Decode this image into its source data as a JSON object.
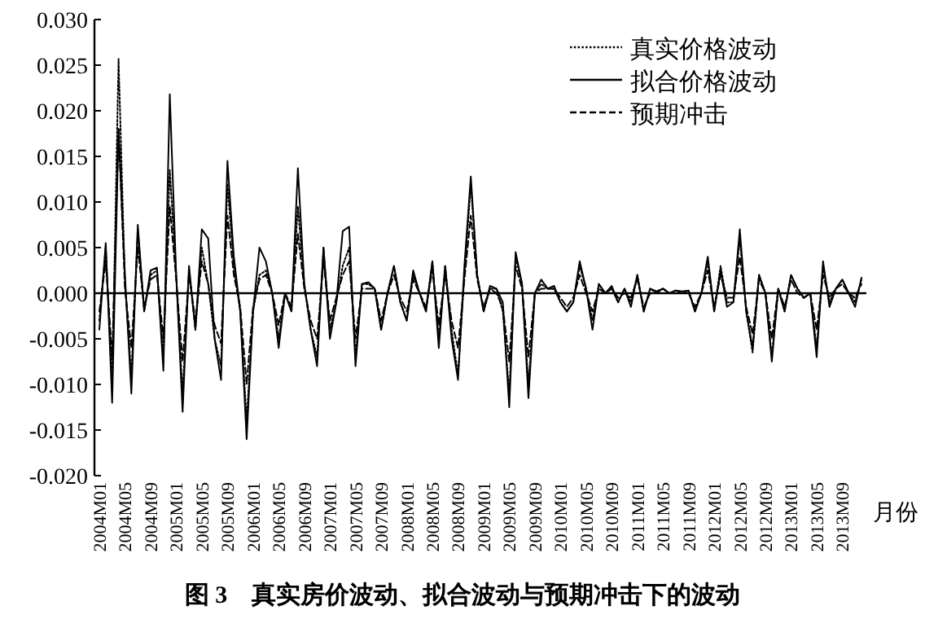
{
  "chart_data": {
    "type": "line",
    "title": "图 3　真实房价波动、拟合波动与预期冲击下的波动",
    "xlabel": "月份",
    "legend": "top right",
    "categories": [
      "2004M01",
      null,
      null,
      null,
      "2004M05",
      null,
      null,
      null,
      "2004M09",
      null,
      null,
      null,
      "2005M01",
      null,
      null,
      null,
      "2005M05",
      null,
      null,
      null,
      "2005M09",
      null,
      null,
      null,
      "2006M01",
      null,
      null,
      null,
      "2006M05",
      null,
      null,
      null,
      "2006M09",
      null,
      null,
      null,
      "2007M01",
      null,
      null,
      null,
      "2007M05",
      null,
      null,
      null,
      "2007M09",
      null,
      null,
      null,
      "2008M01",
      null,
      null,
      null,
      "2008M05",
      null,
      null,
      null,
      "2008M09",
      null,
      null,
      null,
      "2009M01",
      null,
      null,
      null,
      "2009M05",
      null,
      null,
      null,
      "2009M09",
      null,
      null,
      null,
      "2010M01",
      null,
      null,
      null,
      "2010M05",
      null,
      null,
      null,
      "2010M09",
      null,
      null,
      null,
      "2011M01",
      null,
      null,
      null,
      "2011M05",
      null,
      null,
      null,
      "2011M09",
      null,
      null,
      null,
      "2012M01",
      null,
      null,
      null,
      "2012M05",
      null,
      null,
      null,
      "2012M09",
      null,
      null,
      null,
      "2013M01",
      null,
      null,
      null,
      "2013M05",
      null,
      null,
      null,
      "2013M09",
      null,
      null,
      null
    ],
    "ylim": [
      -0.02,
      0.03
    ],
    "yticks": [
      {
        "value": -0.02,
        "label": "-0.020"
      },
      {
        "value": -0.015,
        "label": "-0.015"
      },
      {
        "value": -0.01,
        "label": "-0.010"
      },
      {
        "value": -0.005,
        "label": "-0.005"
      },
      {
        "value": 0,
        "label": "0.000"
      },
      {
        "value": 0.005,
        "label": "0.005"
      },
      {
        "value": 0.01,
        "label": "0.010"
      },
      {
        "value": 0.015,
        "label": "0.015"
      },
      {
        "value": 0.02,
        "label": "0.020"
      },
      {
        "value": 0.025,
        "label": "0.025"
      },
      {
        "value": 0.03,
        "label": "0.030"
      }
    ],
    "series": [
      {
        "name": "真实价格波动",
        "color": "#000000",
        "line_style": "dotted",
        "values": [
          -0.003,
          0.005,
          -0.01,
          0.0257,
          0.001,
          -0.009,
          0.007,
          -0.002,
          0.002,
          0.0025,
          -0.007,
          0.0135,
          0.002,
          -0.011,
          0.0025,
          -0.004,
          0.005,
          0.001,
          -0.005,
          -0.008,
          0.012,
          0.003,
          -0.002,
          -0.014,
          -0.002,
          0.002,
          0.0025,
          0.0,
          -0.005,
          0.0,
          -0.002,
          0.0095,
          0.001,
          -0.004,
          -0.007,
          0.005,
          -0.004,
          -0.001,
          0.003,
          0.005,
          -0.007,
          0.001,
          0.001,
          0.0005,
          -0.004,
          0.0,
          0.003,
          -0.001,
          -0.003,
          0.002,
          0.0,
          -0.002,
          0.0035,
          -0.005,
          0.003,
          -0.004,
          -0.009,
          0.002,
          0.012,
          0.002,
          -0.002,
          0.0005,
          0.0005,
          -0.002,
          -0.011,
          0.004,
          0.001,
          -0.01,
          0.0,
          0.001,
          0.0005,
          0.0005,
          -0.001,
          -0.002,
          -0.001,
          0.003,
          0.0005,
          -0.003,
          0.001,
          0.0,
          0.0005,
          -0.001,
          0.0005,
          -0.001,
          0.002,
          -0.002,
          0.0005,
          0.0,
          0.0005,
          0.0,
          0.0003,
          0.0,
          0.0003,
          -0.002,
          0.0,
          0.0035,
          -0.002,
          0.003,
          -0.001,
          -0.001,
          0.006,
          -0.002,
          -0.0065,
          0.002,
          0.0,
          -0.007,
          0.0005,
          -0.002,
          0.002,
          0.0005,
          -0.0005,
          0.0,
          -0.006,
          0.003,
          -0.001,
          0.0005,
          0.0015,
          0.0,
          -0.001,
          0.0015
        ]
      },
      {
        "name": "拟合价格波动",
        "color": "#000000",
        "line_style": "solid",
        "values": [
          -0.004,
          0.0055,
          -0.012,
          0.018,
          0.002,
          -0.011,
          0.0075,
          -0.002,
          0.0025,
          0.0028,
          -0.0085,
          0.0218,
          0.002,
          -0.013,
          0.003,
          -0.004,
          0.007,
          0.006,
          -0.005,
          -0.0095,
          0.0145,
          0.004,
          -0.002,
          -0.016,
          -0.002,
          0.005,
          0.0035,
          0.0,
          -0.006,
          0.0,
          -0.002,
          0.0137,
          0.001,
          -0.004,
          -0.008,
          0.005,
          -0.005,
          -0.001,
          0.0068,
          0.0073,
          -0.008,
          0.001,
          0.0012,
          0.0005,
          -0.004,
          0.0,
          0.003,
          -0.001,
          -0.003,
          0.0025,
          0.0,
          -0.002,
          0.0035,
          -0.006,
          0.003,
          -0.005,
          -0.0095,
          0.003,
          0.0128,
          0.002,
          -0.002,
          0.0008,
          0.0005,
          -0.001,
          -0.0125,
          0.0045,
          0.001,
          -0.0115,
          0.0,
          0.0015,
          0.0005,
          0.0008,
          -0.001,
          -0.002,
          -0.001,
          0.0035,
          0.0005,
          -0.004,
          0.001,
          0.0,
          0.0008,
          -0.001,
          0.0005,
          -0.0015,
          0.002,
          -0.002,
          0.0005,
          0.0002,
          0.0005,
          0.0,
          0.0003,
          0.0002,
          0.0003,
          -0.002,
          0.0,
          0.004,
          -0.002,
          0.0025,
          -0.0015,
          -0.001,
          0.007,
          -0.002,
          -0.006,
          0.002,
          0.0,
          -0.0075,
          0.0005,
          -0.002,
          0.002,
          0.0005,
          -0.0005,
          0.0,
          -0.007,
          0.0035,
          -0.0015,
          0.0005,
          0.0015,
          0.0,
          -0.0015,
          0.0017
        ]
      },
      {
        "name": "预期冲击",
        "color": "#000000",
        "line_style": "dashed",
        "values": [
          -0.002,
          0.0035,
          -0.007,
          0.018,
          0.0005,
          -0.006,
          0.005,
          -0.0015,
          0.0015,
          0.002,
          -0.005,
          0.0095,
          0.0015,
          -0.0075,
          0.002,
          -0.003,
          0.0035,
          0.001,
          -0.0035,
          -0.0055,
          0.0085,
          0.002,
          -0.0015,
          -0.01,
          -0.0015,
          0.0015,
          0.002,
          0.0,
          -0.0035,
          0.0,
          -0.0015,
          0.0065,
          0.0005,
          -0.003,
          -0.005,
          0.0035,
          -0.003,
          -0.0005,
          0.002,
          0.0035,
          -0.005,
          0.0005,
          0.0005,
          0.0005,
          -0.003,
          0.0,
          0.002,
          -0.0005,
          -0.002,
          0.0015,
          0.0,
          -0.0015,
          0.0025,
          -0.0035,
          0.002,
          -0.003,
          -0.006,
          0.0015,
          0.0085,
          0.0015,
          -0.0015,
          0.0005,
          0.0,
          -0.0015,
          -0.0075,
          0.003,
          0.0005,
          -0.007,
          0.0,
          0.0005,
          0.0005,
          0.0005,
          -0.0005,
          -0.0015,
          -0.0005,
          0.002,
          0.0,
          -0.002,
          0.0005,
          0.0,
          0.0005,
          -0.0005,
          0.0,
          -0.0005,
          0.0015,
          -0.0015,
          0.0,
          0.0,
          0.0005,
          0.0,
          0.0,
          0.0,
          0.0,
          -0.0015,
          0.0,
          0.0025,
          -0.0015,
          0.002,
          -0.0005,
          -0.0005,
          0.004,
          -0.0015,
          -0.0045,
          0.0015,
          0.0,
          -0.005,
          0.0005,
          -0.0015,
          0.0015,
          0.0,
          -0.0005,
          0.0,
          -0.004,
          0.002,
          -0.0005,
          0.0005,
          0.001,
          0.0,
          -0.0005,
          0.001
        ]
      }
    ]
  }
}
